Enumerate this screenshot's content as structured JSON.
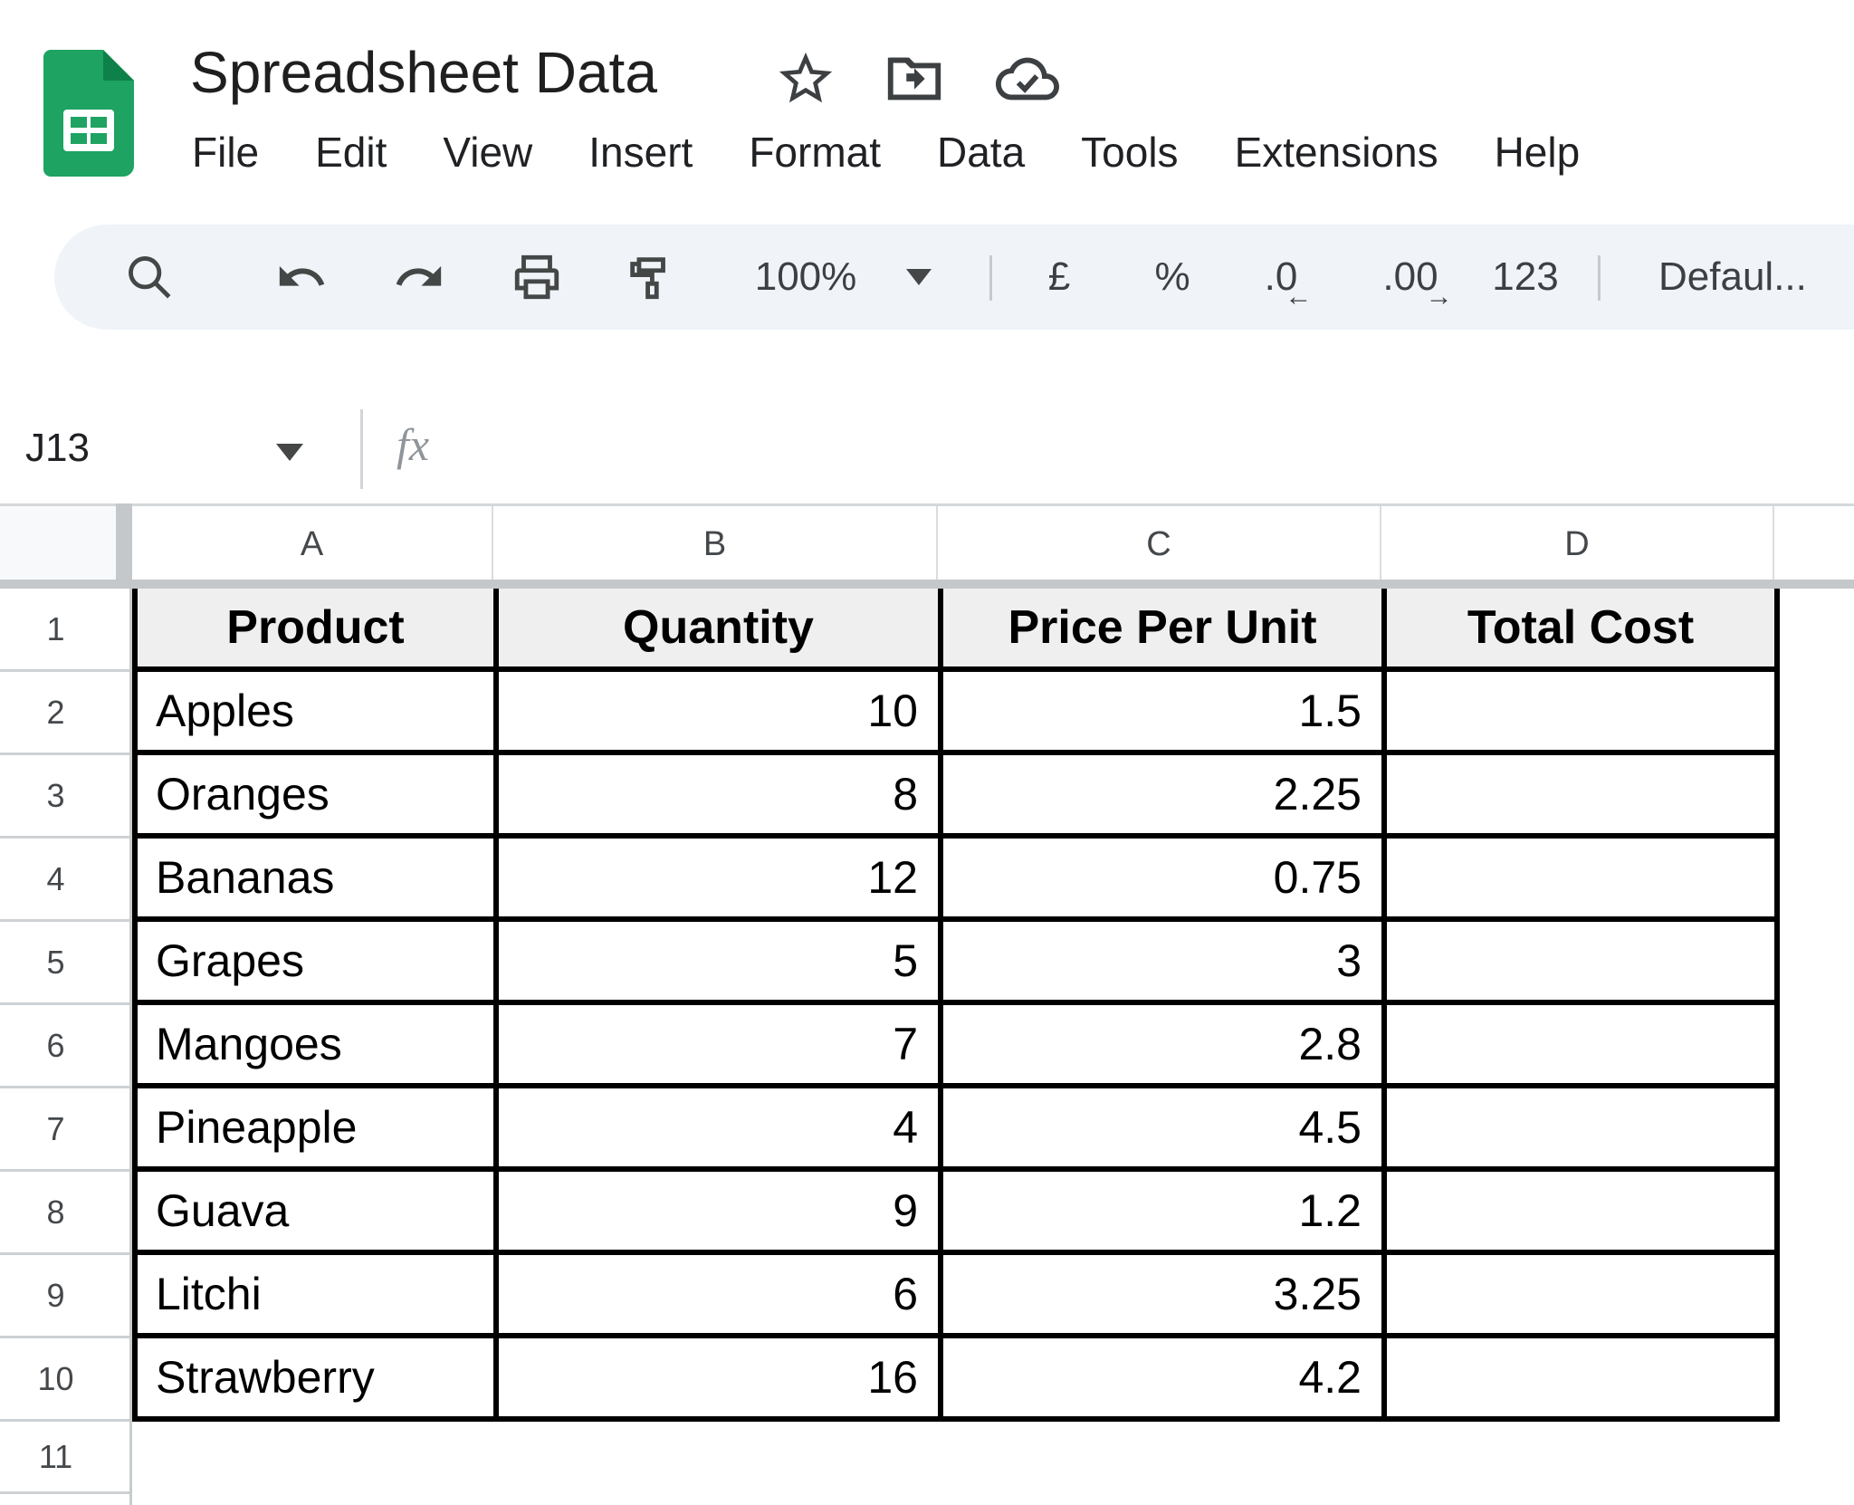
{
  "header": {
    "title": "Spreadsheet Data",
    "menu": [
      "File",
      "Edit",
      "View",
      "Insert",
      "Format",
      "Data",
      "Tools",
      "Extensions",
      "Help"
    ]
  },
  "toolbar": {
    "zoom": "100%",
    "currency": "£",
    "percent": "%",
    "decrease_decimals": ".0",
    "decrease_decimals_arrow": "←",
    "increase_decimals": ".00",
    "increase_decimals_arrow": "→",
    "more_formats": "123",
    "font": "Defaul..."
  },
  "formula_bar": {
    "cell_reference": "J13",
    "fx_label": "fx"
  },
  "grid": {
    "column_letters": [
      "A",
      "B",
      "C",
      "D"
    ],
    "row_numbers": [
      "1",
      "2",
      "3",
      "4",
      "5",
      "6",
      "7",
      "8",
      "9",
      "10",
      "11"
    ],
    "table": {
      "headers": [
        "Product",
        "Quantity",
        "Price Per Unit",
        "Total Cost"
      ],
      "rows": [
        [
          "Apples",
          "10",
          "1.5",
          ""
        ],
        [
          "Oranges",
          "8",
          "2.25",
          ""
        ],
        [
          "Bananas",
          "12",
          "0.75",
          ""
        ],
        [
          "Grapes",
          "5",
          "3",
          ""
        ],
        [
          "Mangoes",
          "7",
          "2.8",
          ""
        ],
        [
          "Pineapple",
          "4",
          "4.5",
          ""
        ],
        [
          "Guava",
          "9",
          "1.2",
          ""
        ],
        [
          "Litchi",
          "6",
          "3.25",
          ""
        ],
        [
          "Strawberry",
          "16",
          "4.2",
          ""
        ]
      ]
    }
  },
  "colors": {
    "logo_green": "#1ea362",
    "logo_fold_green": "#0e8049",
    "table_header_fill": "#efefef",
    "toolbar_bg": "#f0f4f9",
    "grid_band_gray": "#c5c8ca",
    "border_black": "#000000"
  }
}
